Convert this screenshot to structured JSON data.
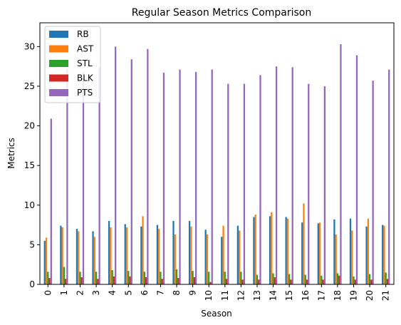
{
  "chart_data": {
    "type": "bar",
    "title": "Regular Season Metrics Comparison",
    "xlabel": "Season",
    "ylabel": "Metrics",
    "ylim": [
      0,
      33
    ],
    "yticks": [
      0,
      5,
      10,
      15,
      20,
      25,
      30
    ],
    "ytick_labels": [
      "0",
      "5",
      "10",
      "15",
      "20",
      "25",
      "30"
    ],
    "grid": false,
    "legend_position": "top-left",
    "categories": [
      "0",
      "1",
      "2",
      "3",
      "4",
      "5",
      "6",
      "7",
      "8",
      "9",
      "10",
      "11",
      "12",
      "13",
      "14",
      "15",
      "16",
      "17",
      "18",
      "19",
      "20",
      "21"
    ],
    "series": [
      {
        "name": "RB",
        "color": "#1f77b4",
        "values": [
          5.5,
          7.4,
          7.0,
          6.7,
          8.0,
          7.6,
          7.3,
          7.5,
          8.0,
          8.0,
          6.9,
          6.0,
          7.4,
          8.5,
          8.6,
          8.5,
          7.8,
          7.7,
          8.2,
          8.3,
          7.3,
          7.5
        ]
      },
      {
        "name": "AST",
        "color": "#ff7f0e",
        "values": [
          5.9,
          7.2,
          6.7,
          6.0,
          7.2,
          7.2,
          8.6,
          7.0,
          6.3,
          7.3,
          6.3,
          7.4,
          6.8,
          8.8,
          9.1,
          8.3,
          10.2,
          7.8,
          6.3,
          6.8,
          8.3,
          7.4
        ]
      },
      {
        "name": "STL",
        "color": "#2ca02c",
        "values": [
          1.6,
          2.2,
          1.6,
          1.6,
          1.8,
          1.7,
          1.6,
          1.6,
          1.9,
          1.7,
          1.6,
          1.6,
          1.6,
          1.2,
          1.4,
          1.3,
          1.2,
          1.1,
          1.4,
          1.0,
          1.3,
          1.5
        ]
      },
      {
        "name": "BLK",
        "color": "#d62728",
        "values": [
          0.8,
          0.7,
          0.9,
          0.7,
          1.0,
          1.0,
          0.9,
          0.7,
          0.8,
          0.9,
          0.3,
          0.7,
          0.6,
          0.6,
          0.9,
          0.6,
          0.6,
          0.6,
          1.1,
          0.6,
          0.6,
          0.7
        ]
      },
      {
        "name": "PTS",
        "color": "#9467bd",
        "values": [
          20.9,
          27.2,
          26.8,
          27.3,
          30.0,
          28.4,
          29.7,
          26.7,
          27.1,
          26.8,
          27.1,
          25.3,
          25.3,
          26.4,
          27.5,
          27.4,
          25.3,
          25.0,
          30.3,
          28.9,
          25.7,
          27.1
        ]
      }
    ]
  }
}
